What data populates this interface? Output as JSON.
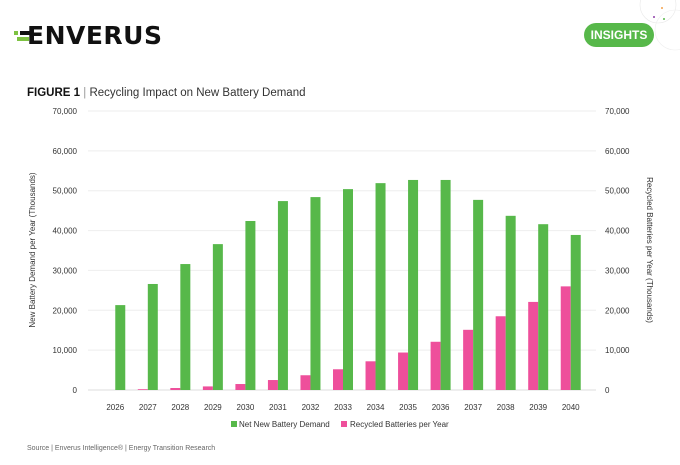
{
  "header": {
    "logo_text": "ENVERUS",
    "badge_label": "INSIGHTS",
    "brand_color": "#57b84a"
  },
  "figure": {
    "label": "FIGURE 1",
    "separator": "|",
    "title": "Recycling Impact on New Battery Demand"
  },
  "footer": {
    "source": "Source | Enverus Intelligence® | Energy Transition Research"
  },
  "chart_data": {
    "type": "bar",
    "title": "Recycling Impact on New Battery Demand",
    "xlabel": "",
    "ylabel": "New Battery Demand per Year (Thousands)",
    "y2label": "Recycled Batteries per Year (Thousands)",
    "ylim": [
      0,
      70000
    ],
    "y2lim": [
      0,
      70000
    ],
    "yticks": [
      "0",
      "10,000",
      "20,000",
      "30,000",
      "40,000",
      "50,000",
      "60,000",
      "70,000"
    ],
    "grid": true,
    "legend": "bottom-center",
    "categories": [
      "2026",
      "2027",
      "2028",
      "2029",
      "2030",
      "2031",
      "2032",
      "2033",
      "2034",
      "2035",
      "2036",
      "2037",
      "2038",
      "2039",
      "2040"
    ],
    "series": [
      {
        "name": "Recycled Batteries per Year",
        "color": "#ee4f9b",
        "axis": "right",
        "values": [
          0,
          200,
          500,
          900,
          1500,
          2500,
          3700,
          5200,
          7200,
          9400,
          12100,
          15100,
          18500,
          22100,
          26000
        ]
      },
      {
        "name": "Net New Battery Demand",
        "color": "#57b84a",
        "axis": "left",
        "values": [
          21300,
          26600,
          31600,
          36600,
          42400,
          47400,
          48400,
          50400,
          51900,
          52700,
          52700,
          47700,
          43700,
          41600,
          38900
        ]
      }
    ],
    "legend_order": [
      "Net New Battery Demand",
      "Recycled Batteries per Year"
    ]
  }
}
